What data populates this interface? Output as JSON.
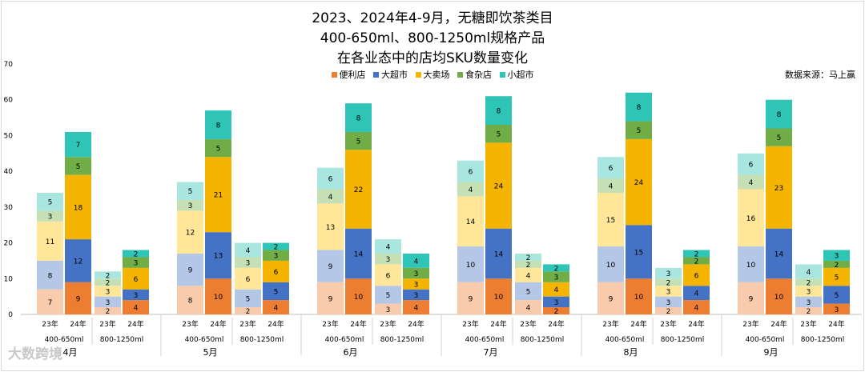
{
  "chart_data": {
    "type": "bar",
    "subtype": "stacked",
    "title_lines": [
      "2023、2024年4-9月，无糖即饮茶类目",
      "400-650ml、800-1250ml规格产品",
      "在各业态中的店均SKU数量变化"
    ],
    "source": "数据来源：马上赢",
    "ylim": [
      0,
      70
    ],
    "yticks": [
      "0",
      "10",
      "20",
      "30",
      "40",
      "50",
      "60",
      "70"
    ],
    "legend_position": "top-center",
    "series_names": [
      "便利店",
      "大超市",
      "大卖场",
      "食杂店",
      "小超市"
    ],
    "colors": {
      "24": [
        "#ed7d31",
        "#4472c4",
        "#f4b400",
        "#70ad47",
        "#2ec4b6"
      ],
      "23": [
        "#f8cbad",
        "#b4c7e7",
        "#ffe699",
        "#c5e0b4",
        "#a8e6df"
      ]
    },
    "months": [
      {
        "label": "4月",
        "groups": [
          {
            "label": "400-650ml",
            "bars": [
              {
                "year": "23",
                "year_label": "23年",
                "values": [
                  7,
                  8,
                  11,
                  3,
                  5
                ]
              },
              {
                "year": "24",
                "year_label": "24年",
                "values": [
                  9,
                  12,
                  18,
                  5,
                  7
                ]
              }
            ]
          },
          {
            "label": "800-1250ml",
            "bars": [
              {
                "year": "23",
                "year_label": "23年",
                "values": [
                  2,
                  3,
                  3,
                  2,
                  2
                ]
              },
              {
                "year": "24",
                "year_label": "24年",
                "values": [
                  4,
                  3,
                  6,
                  3,
                  2
                ]
              }
            ]
          }
        ]
      },
      {
        "label": "5月",
        "groups": [
          {
            "label": "400-650ml",
            "bars": [
              {
                "year": "23",
                "year_label": "23年",
                "values": [
                  8,
                  9,
                  12,
                  3,
                  5
                ]
              },
              {
                "year": "24",
                "year_label": "24年",
                "values": [
                  10,
                  13,
                  21,
                  5,
                  8
                ]
              }
            ]
          },
          {
            "label": "800-1250ml",
            "bars": [
              {
                "year": "23",
                "year_label": "23年",
                "values": [
                  2,
                  5,
                  6,
                  3,
                  4
                ]
              },
              {
                "year": "24",
                "year_label": "24年",
                "values": [
                  4,
                  5,
                  6,
                  3,
                  2
                ]
              }
            ]
          }
        ]
      },
      {
        "label": "6月",
        "groups": [
          {
            "label": "400-650ml",
            "bars": [
              {
                "year": "23",
                "year_label": "23年",
                "values": [
                  9,
                  9,
                  13,
                  4,
                  6
                ]
              },
              {
                "year": "24",
                "year_label": "24年",
                "values": [
                  10,
                  14,
                  22,
                  5,
                  8
                ]
              }
            ]
          },
          {
            "label": "800-1250ml",
            "bars": [
              {
                "year": "23",
                "year_label": "23年",
                "values": [
                  3,
                  5,
                  6,
                  3,
                  4
                ]
              },
              {
                "year": "24",
                "year_label": "24年",
                "values": [
                  4,
                  3,
                  3,
                  3,
                  4
                ]
              }
            ]
          }
        ]
      },
      {
        "label": "7月",
        "groups": [
          {
            "label": "400-650ml",
            "bars": [
              {
                "year": "23",
                "year_label": "23年",
                "values": [
                  9,
                  10,
                  14,
                  4,
                  6
                ]
              },
              {
                "year": "24",
                "year_label": "24年",
                "values": [
                  10,
                  14,
                  24,
                  5,
                  8
                ]
              }
            ]
          },
          {
            "label": "800-1250ml",
            "bars": [
              {
                "year": "23",
                "year_label": "23年",
                "values": [
                  4,
                  5,
                  4,
                  2,
                  2
                ]
              },
              {
                "year": "24",
                "year_label": "24年",
                "values": [
                  2,
                  3,
                  4,
                  3,
                  2
                ]
              }
            ]
          }
        ]
      },
      {
        "label": "8月",
        "groups": [
          {
            "label": "400-650ml",
            "bars": [
              {
                "year": "23",
                "year_label": "23年",
                "values": [
                  9,
                  10,
                  15,
                  4,
                  6
                ]
              },
              {
                "year": "24",
                "year_label": "24年",
                "values": [
                  10,
                  15,
                  24,
                  5,
                  8
                ]
              }
            ]
          },
          {
            "label": "800-1250ml",
            "bars": [
              {
                "year": "23",
                "year_label": "23年",
                "values": [
                  2,
                  3,
                  3,
                  2,
                  3
                ]
              },
              {
                "year": "24",
                "year_label": "24年",
                "values": [
                  4,
                  4,
                  6,
                  2,
                  2
                ]
              }
            ]
          }
        ]
      },
      {
        "label": "9月",
        "groups": [
          {
            "label": "400-650ml",
            "bars": [
              {
                "year": "23",
                "year_label": "23年",
                "values": [
                  9,
                  10,
                  16,
                  4,
                  6
                ]
              },
              {
                "year": "24",
                "year_label": "24年",
                "values": [
                  10,
                  14,
                  23,
                  5,
                  8
                ]
              }
            ]
          },
          {
            "label": "800-1250ml",
            "bars": [
              {
                "year": "23",
                "year_label": "23年",
                "values": [
                  2,
                  3,
                  3,
                  2,
                  4
                ]
              },
              {
                "year": "24",
                "year_label": "24年",
                "values": [
                  3,
                  5,
                  5,
                  2,
                  3
                ]
              }
            ]
          }
        ]
      }
    ]
  },
  "watermark": "大数跨境"
}
